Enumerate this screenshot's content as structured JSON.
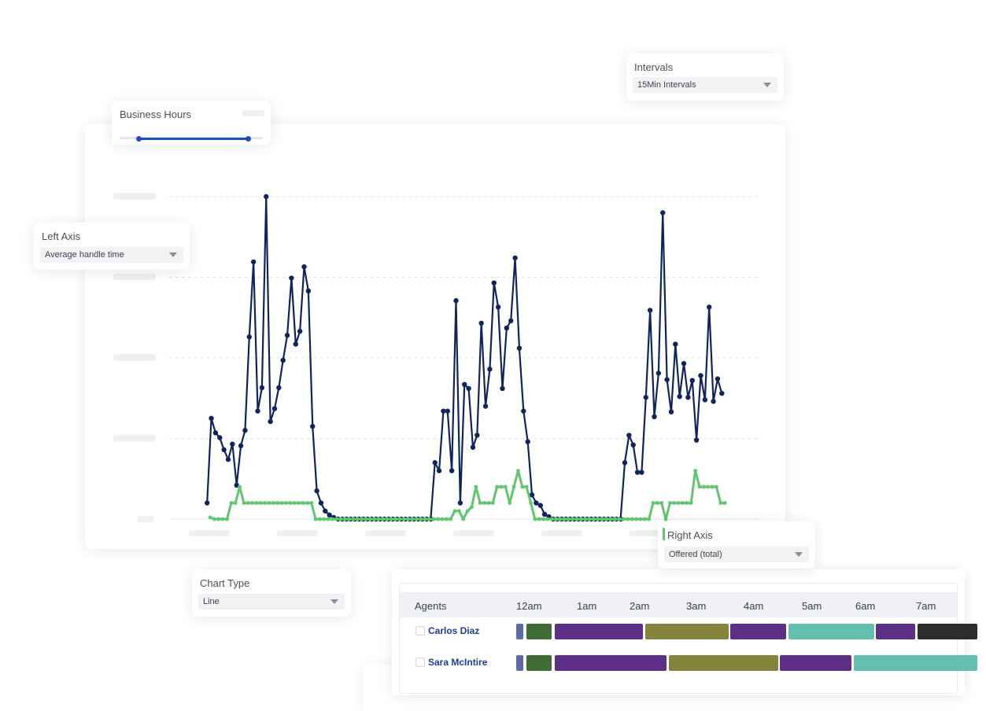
{
  "intervals": {
    "label": "Intervals",
    "selected": "15Min Intervals"
  },
  "business_hours": {
    "label": "Business Hours",
    "range": [
      0.13,
      0.9
    ]
  },
  "left_axis": {
    "label": "Left Axis",
    "selected": "Average handle time"
  },
  "right_axis": {
    "label": "Right Axis",
    "selected": "Offered (total)"
  },
  "chart_type": {
    "label": "Chart Type",
    "selected": "Line"
  },
  "colors": {
    "series_primary": "#10245e",
    "series_secondary": "#62c66e",
    "slider": "#1e4fc0",
    "link": "#1d3d99"
  },
  "chart_data": {
    "type": "line",
    "title": "",
    "xlabel": "",
    "ylabel": "",
    "ylim": [
      0,
      4
    ],
    "grid": true,
    "series": [
      {
        "values": [
          0.2,
          1.25,
          1.07,
          1.01,
          0.86,
          0.74,
          0.93,
          0.42,
          0.91,
          1.1,
          2.26,
          3.19,
          1.34,
          1.63,
          4.0,
          1.21,
          1.37,
          1.63,
          1.97,
          2.28,
          2.99,
          2.17,
          2.33,
          3.13,
          2.83,
          1.15,
          0.35,
          0.2,
          0.1,
          0.05,
          0.02,
          0,
          0,
          0,
          0,
          0,
          0,
          0,
          0,
          0,
          0,
          0,
          0,
          0,
          0,
          0,
          0,
          0,
          0,
          0,
          0,
          0,
          0,
          0,
          0.7,
          0.6,
          1.34,
          1.34,
          0.6,
          2.71,
          0.2,
          1.67,
          1.62,
          0.89,
          1.04,
          2.43,
          1.4,
          1.86,
          2.93,
          2.63,
          1.62,
          2.37,
          2.46,
          3.24,
          2.12,
          1.34,
          0.96,
          0.3,
          0.2,
          0.17,
          0.06,
          0.03,
          0,
          0,
          0,
          0,
          0,
          0,
          0,
          0,
          0,
          0,
          0,
          0,
          0,
          0,
          0,
          0,
          0,
          0.7,
          1.04,
          0.92,
          0.58,
          0.58,
          1.51,
          2.59,
          1.27,
          1.81,
          3.8,
          1.73,
          1.33,
          2.17,
          1.52,
          1.93,
          1.51,
          1.72,
          0.98,
          1.78,
          1.48,
          2.63,
          1.46,
          1.74,
          1.56
        ],
        "x_start": 0.78,
        "x_step": 1.0
      },
      {
        "values": [
          0.02,
          0,
          0,
          0,
          0,
          0.2,
          0.2,
          0.4,
          0.2,
          0.2,
          0.2,
          0.2,
          0.2,
          0.2,
          0.2,
          0.2,
          0.2,
          0.2,
          0.2,
          0.2,
          0.2,
          0.2,
          0.2,
          0.2,
          0.2,
          0,
          0,
          0,
          0,
          0,
          0,
          0,
          0,
          0,
          0,
          0,
          0,
          0,
          0,
          0,
          0,
          0,
          0,
          0,
          0,
          0,
          0,
          0,
          0,
          0,
          0,
          0,
          0,
          0,
          0,
          0,
          0,
          0,
          0.1,
          0.1,
          0,
          0.1,
          0.15,
          0.4,
          0.2,
          0.2,
          0.2,
          0.2,
          0.4,
          0.4,
          0.4,
          0.2,
          0.4,
          0.6,
          0.4,
          0.4,
          0.2,
          0,
          0,
          0,
          0,
          0,
          0,
          0,
          0,
          0,
          0,
          0,
          0,
          0,
          0,
          0,
          0,
          0,
          0,
          0,
          0,
          0,
          0,
          0,
          0,
          0,
          0,
          0,
          0,
          0.2,
          0.2,
          0.2,
          0,
          0.2,
          0.2,
          0.2,
          0.2,
          0.2,
          0.2,
          0.6,
          0.4,
          0.4,
          0.4,
          0.4,
          0.4,
          0.2,
          0.2
        ],
        "x_start": 1.5,
        "x_step": 1.0
      }
    ]
  },
  "agents": {
    "header_label": "Agents",
    "hours": [
      "12am",
      "1am",
      "2am",
      "3am",
      "4am",
      "5am",
      "6am",
      "7am"
    ],
    "rows": [
      {
        "name": "Carlos Diaz",
        "segments": [
          {
            "start": 0.0,
            "end": 0.13,
            "color": "#5c6ba3"
          },
          {
            "start": 0.18,
            "end": 0.63,
            "color": "#3f6b35"
          },
          {
            "start": 0.68,
            "end": 2.25,
            "color": "#5d2f86"
          },
          {
            "start": 2.29,
            "end": 3.77,
            "color": "#85843d"
          },
          {
            "start": 3.81,
            "end": 4.8,
            "color": "#5d2f86"
          },
          {
            "start": 4.84,
            "end": 6.36,
            "color": "#64bfb0"
          },
          {
            "start": 6.39,
            "end": 7.09,
            "color": "#5d2f86"
          },
          {
            "start": 7.13,
            "end": 8.2,
            "color": "#2c2d2f"
          }
        ]
      },
      {
        "name": "Sara McIntire",
        "segments": [
          {
            "start": 0.0,
            "end": 0.13,
            "color": "#5c6ba3"
          },
          {
            "start": 0.18,
            "end": 0.63,
            "color": "#3f6b35"
          },
          {
            "start": 0.68,
            "end": 2.67,
            "color": "#5d2f86"
          },
          {
            "start": 2.71,
            "end": 4.66,
            "color": "#85843d"
          },
          {
            "start": 4.69,
            "end": 5.96,
            "color": "#5d2f86"
          },
          {
            "start": 6.0,
            "end": 8.2,
            "color": "#64bfb0"
          }
        ]
      }
    ]
  }
}
